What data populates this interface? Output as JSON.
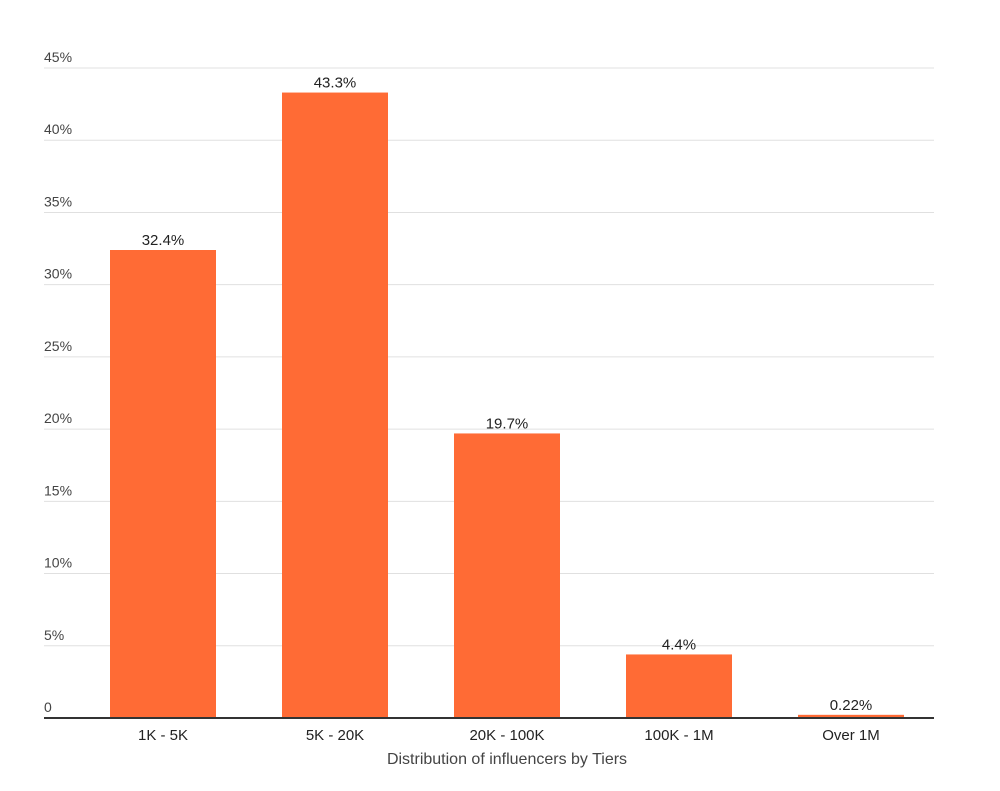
{
  "chart_data": {
    "type": "bar",
    "xlabel": "Distribution of influencers by Tiers",
    "ylabel": "",
    "ylim": [
      0,
      45
    ],
    "ytick_values": [
      0,
      5,
      10,
      15,
      20,
      25,
      30,
      35,
      40,
      45
    ],
    "ytick_labels": [
      "0",
      "5%",
      "10%",
      "15%",
      "20%",
      "25%",
      "30%",
      "35%",
      "40%",
      "45%"
    ],
    "categories": [
      "1K - 5K",
      "5K - 20K",
      "20K - 100K",
      "100K - 1M",
      "Over 1M"
    ],
    "values": [
      32.4,
      43.3,
      19.7,
      4.4,
      0.22
    ],
    "data_labels": [
      "32.4%",
      "43.3%",
      "19.7%",
      "4.4%",
      "0.22%"
    ],
    "bar_color": "#ff6b35",
    "grid": true,
    "grid_color": "#e0e0e0",
    "axis_color": "#333333"
  }
}
